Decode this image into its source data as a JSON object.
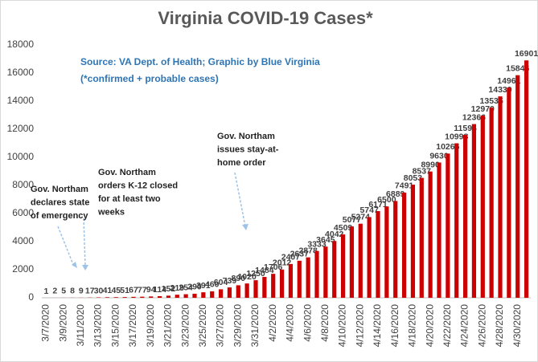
{
  "chart_data": {
    "type": "bar",
    "title": "Virginia COVID-19 Cases*",
    "subtitle": [
      "Source: VA Dept. of Health; Graphic by Blue Virginia",
      "(*confirmed + probable cases)"
    ],
    "annotations": [
      {
        "text": [
          "Gov. Northam",
          "declares state",
          "of emergency"
        ]
      },
      {
        "text": [
          "Gov. Northam",
          "orders K-12 closed",
          "for at least two",
          "weeks"
        ]
      },
      {
        "text": [
          "Gov. Northam",
          "issues stay-at-",
          "home order"
        ]
      }
    ],
    "categories": [
      "3/7/2020",
      null,
      "3/9/2020",
      null,
      "3/11/2020",
      null,
      "3/13/2020",
      null,
      "3/15/2020",
      null,
      "3/17/2020",
      null,
      "3/19/2020",
      null,
      "3/21/2020",
      null,
      "3/23/2020",
      null,
      "3/25/2020",
      null,
      "3/27/2020",
      null,
      "3/29/2020",
      null,
      "3/31/2020",
      null,
      "4/2/2020",
      null,
      "4/4/2020",
      null,
      "4/6/2020",
      null,
      "4/8/2020",
      null,
      "4/10/2020",
      null,
      "4/12/2020",
      null,
      "4/14/2020",
      null,
      "4/16/2020",
      null,
      "4/18/2020",
      null,
      "4/20/2020",
      null,
      "4/22/2020",
      null,
      "4/24/2020",
      null,
      "4/26/2020",
      null,
      "4/28/2020",
      null,
      "4/30/2020",
      null
    ],
    "values": [
      1,
      2,
      5,
      8,
      9,
      17,
      30,
      41,
      45,
      51,
      67,
      77,
      94,
      114,
      152,
      219,
      254,
      290,
      391,
      460,
      604,
      739,
      890,
      1020,
      1250,
      1484,
      1706,
      2012,
      2407,
      2637,
      2878,
      3333,
      3645,
      4042,
      4509,
      5077,
      5274,
      5747,
      6171,
      6500,
      6889,
      7491,
      8053,
      8537,
      8990,
      9630,
      10266,
      10998,
      11594,
      12366,
      12970,
      13535,
      14339,
      14961,
      15846,
      16901
    ],
    "color": "#cc0000",
    "ylim": [
      0,
      18000
    ],
    "yticks": [
      0,
      2000,
      4000,
      6000,
      8000,
      10000,
      12000,
      14000,
      16000,
      18000
    ],
    "grid": false
  }
}
